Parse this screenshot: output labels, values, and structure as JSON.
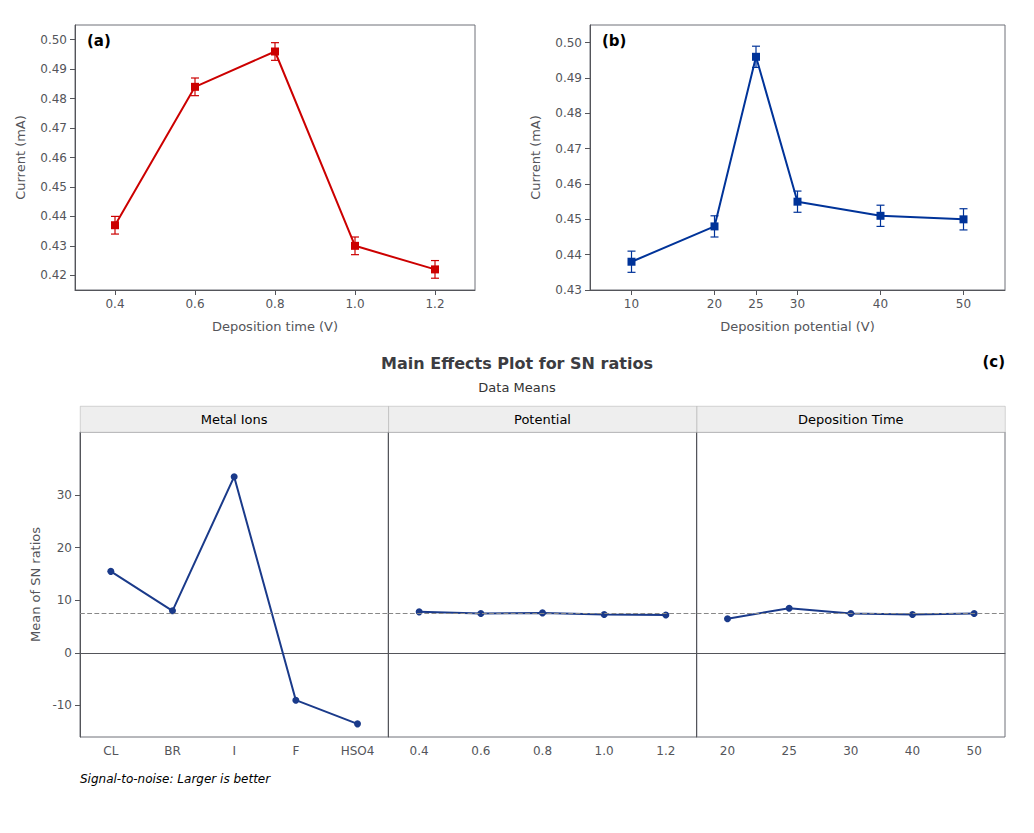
{
  "chart_data": [
    {
      "type": "line",
      "annotations": [
        "(a)"
      ],
      "xlabel": "Deposition time (V)",
      "ylabel": "Current (mA)",
      "x": [
        0.4,
        0.6,
        0.8,
        1.0,
        1.2
      ],
      "values": [
        0.437,
        0.484,
        0.496,
        0.43,
        0.422
      ],
      "yerr": [
        0.003,
        0.003,
        0.003,
        0.003,
        0.003
      ],
      "xlim": [
        0.3,
        1.3
      ],
      "xticks": [
        0.4,
        0.6,
        0.8,
        {
          "value": 1.0,
          "label": "1.0"
        },
        1.2
      ],
      "ylim": [
        0.415,
        0.505
      ],
      "yticks": [
        0.42,
        0.43,
        0.44,
        0.45,
        0.46,
        0.47,
        0.48,
        0.49,
        {
          "value": 0.5,
          "label": "0.50"
        }
      ],
      "color": "#cc0000",
      "marker": "square",
      "grid": false
    },
    {
      "type": "line",
      "annotations": [
        "(b)"
      ],
      "xlabel": "Deposition potential (V)",
      "ylabel": "Current (mA)",
      "x": [
        10,
        20,
        25,
        30,
        40,
        50
      ],
      "values": [
        0.438,
        0.448,
        0.496,
        0.455,
        0.451,
        0.45
      ],
      "yerr": [
        0.003,
        0.003,
        0.003,
        0.003,
        0.003,
        0.003
      ],
      "xlim": [
        5,
        55
      ],
      "xticks": [
        10,
        20,
        25,
        30,
        40,
        50
      ],
      "ylim": [
        0.43,
        0.505
      ],
      "yticks": [
        0.43,
        0.44,
        0.45,
        0.46,
        0.47,
        0.48,
        0.49,
        {
          "value": 0.5,
          "label": "0.50"
        }
      ],
      "color": "#003399",
      "marker": "square",
      "grid": false
    },
    {
      "type": "line",
      "title": "Main Effects Plot for SN ratios",
      "subtitle": "Data Means",
      "ylabel": "Mean of SN ratios",
      "annotations": [
        "(c)",
        "Signal-to-noise: Larger is better"
      ],
      "series": [
        {
          "name": "Metal Ions",
          "categories": [
            "CL",
            "BR",
            "I",
            "F",
            "HSO4"
          ],
          "values": [
            15.5,
            8.0,
            33.5,
            -9.0,
            -13.5
          ]
        },
        {
          "name": "Potential",
          "categories": [
            "0.4",
            "0.6",
            "0.8",
            "1.0",
            "1.2"
          ],
          "values": [
            7.8,
            7.5,
            7.6,
            7.3,
            7.2
          ]
        },
        {
          "name": "Deposition Time",
          "categories": [
            "20",
            "25",
            "30",
            "40",
            "50"
          ],
          "values": [
            6.5,
            8.5,
            7.5,
            7.3,
            7.5
          ]
        }
      ],
      "reference_line": 7.5,
      "ylim": [
        -16,
        42
      ],
      "yticks": [
        -10,
        0,
        10,
        20,
        30
      ],
      "color": "#1a3a8a",
      "marker": "circle",
      "grid": false
    }
  ]
}
